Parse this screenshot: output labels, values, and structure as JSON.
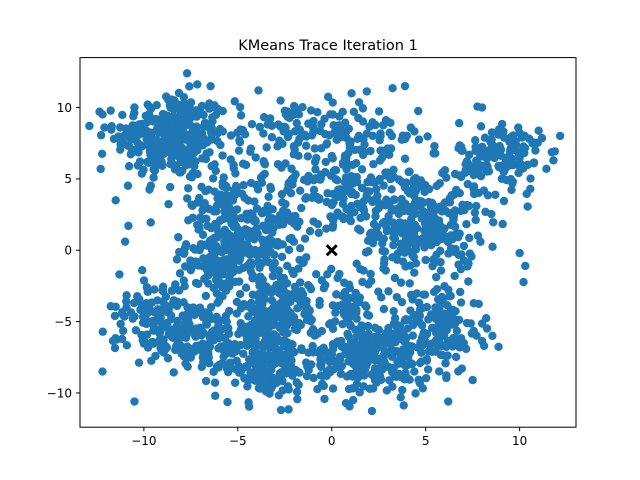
{
  "chart_data": {
    "type": "scatter",
    "title": "KMeans Trace Iteration 1",
    "xlabel": "",
    "ylabel": "",
    "xlim": [
      -13.4,
      13.0
    ],
    "ylim": [
      -12.4,
      13.5
    ],
    "x_ticks": [
      -10,
      -5,
      0,
      5,
      10
    ],
    "y_ticks": [
      -10,
      -5,
      0,
      5,
      10
    ],
    "grid": false,
    "legend": "none",
    "point_color": "#1f77b4",
    "marker_color": "#000000",
    "clusters": [
      {
        "center": [
          -8.5,
          8.0
        ],
        "spread": [
          1.5,
          1.5
        ],
        "count": 320
      },
      {
        "center": [
          -4.5,
          0.5
        ],
        "spread": [
          1.6,
          1.6
        ],
        "count": 260
      },
      {
        "center": [
          -3.0,
          -4.5
        ],
        "spread": [
          1.3,
          1.3
        ],
        "count": 190
      },
      {
        "center": [
          -3.5,
          -8.0
        ],
        "spread": [
          1.3,
          1.2
        ],
        "count": 170
      },
      {
        "center": [
          -7.5,
          -6.0
        ],
        "spread": [
          1.5,
          1.2
        ],
        "count": 180
      },
      {
        "center": [
          -9.5,
          -4.0
        ],
        "spread": [
          1.0,
          1.2
        ],
        "count": 70
      },
      {
        "center": [
          -2.5,
          8.5
        ],
        "spread": [
          1.3,
          1.2
        ],
        "count": 70
      },
      {
        "center": [
          1.5,
          8.0
        ],
        "spread": [
          1.6,
          1.3
        ],
        "count": 90
      },
      {
        "center": [
          0.0,
          4.5
        ],
        "spread": [
          1.6,
          1.4
        ],
        "count": 110
      },
      {
        "center": [
          4.5,
          2.0
        ],
        "spread": [
          1.6,
          2.0
        ],
        "count": 330
      },
      {
        "center": [
          9.0,
          6.5
        ],
        "spread": [
          1.1,
          1.3
        ],
        "count": 150
      },
      {
        "center": [
          2.0,
          -7.5
        ],
        "spread": [
          1.6,
          1.3
        ],
        "count": 240
      },
      {
        "center": [
          5.5,
          -5.5
        ],
        "spread": [
          1.3,
          1.5
        ],
        "count": 160
      },
      {
        "center": [
          1.0,
          -3.5
        ],
        "spread": [
          1.2,
          1.2
        ],
        "count": 45
      },
      {
        "center": [
          -6.0,
          -1.0
        ],
        "spread": [
          1.0,
          1.2
        ],
        "count": 60
      },
      {
        "center": [
          -6.0,
          4.0
        ],
        "spread": [
          1.2,
          1.2
        ],
        "count": 70
      }
    ],
    "outliers": [
      [
        -12.3,
        5.7
      ],
      [
        -12.1,
        8.6
      ],
      [
        -11.5,
        3.5
      ],
      [
        -12.2,
        -8.5
      ],
      [
        -10.5,
        -10.6
      ],
      [
        -7.7,
        12.4
      ],
      [
        3.9,
        11.5
      ],
      [
        11.8,
        6.3
      ],
      [
        6.2,
        -10.6
      ],
      [
        7.5,
        -9.1
      ],
      [
        -6.2,
        -10.2
      ],
      [
        -2.7,
        -11.2
      ],
      [
        -3.9,
        11.2
      ],
      [
        -2.0,
        10.1
      ],
      [
        -1.1,
        9.8
      ],
      [
        8.0,
        10.0
      ],
      [
        -11.0,
        0.6
      ],
      [
        10.3,
        -1.1
      ],
      [
        -11.3,
        -1.7
      ],
      [
        10.0,
        -0.2
      ]
    ],
    "centroids": [
      {
        "x": 0.0,
        "y": 0.0,
        "marker": "x"
      }
    ]
  }
}
